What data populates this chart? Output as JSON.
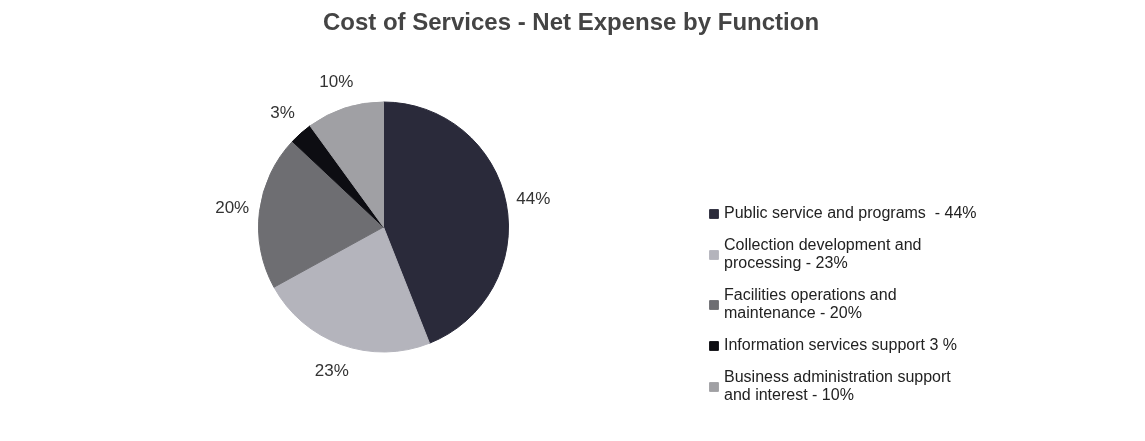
{
  "chart_data": {
    "type": "pie",
    "title": "Cost of Services - Net Expense by Function",
    "categories": [
      "Public service and programs  - 44%",
      "Collection development and processing - 23%",
      "Facilities operations and maintenance - 20%",
      "Information services support 3 %",
      "Business administration support and interest - 10%"
    ],
    "values": [
      44,
      23,
      20,
      3,
      10
    ],
    "colors": [
      "#2a2a3a",
      "#b4b4bc",
      "#6e6e72",
      "#0d0d12",
      "#a0a0a4"
    ],
    "value_labels": [
      "44%",
      "23%",
      "20%",
      "3%",
      "10%"
    ],
    "legend": "right"
  }
}
